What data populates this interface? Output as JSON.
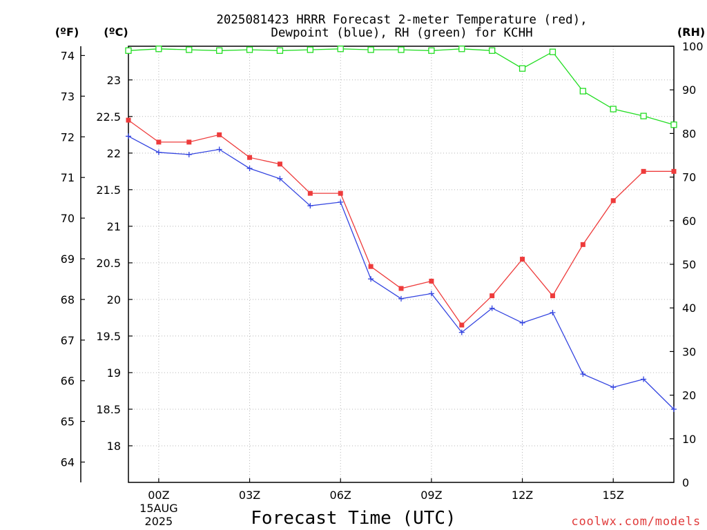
{
  "chart_data": {
    "type": "line",
    "title_lines": [
      "2025081423 HRRR Forecast 2-meter Temperature (red),",
      "Dewpoint (blue), RH (green) for KCHH"
    ],
    "xlabel": "Forecast Time (UTC)",
    "x": [
      "23Z",
      "00Z",
      "01Z",
      "02Z",
      "03Z",
      "04Z",
      "05Z",
      "06Z",
      "07Z",
      "08Z",
      "09Z",
      "10Z",
      "11Z",
      "12Z",
      "13Z",
      "14Z",
      "15Z",
      "16Z",
      "17Z"
    ],
    "x_ticks": [
      "00Z",
      "03Z",
      "06Z",
      "09Z",
      "12Z",
      "15Z"
    ],
    "x_date_label": [
      "15AUG",
      "2025"
    ],
    "left_axis_f": {
      "label": "(ºF)",
      "ticks": [
        64,
        65,
        66,
        67,
        68,
        69,
        70,
        71,
        72,
        73,
        74
      ],
      "ylim": [
        63.5,
        74.23
      ]
    },
    "left_axis_c": {
      "label": "(ºC)",
      "ticks": [
        18,
        18.5,
        19,
        19.5,
        20,
        20.5,
        21,
        21.5,
        22,
        22.5,
        23
      ],
      "ylim": [
        17.5,
        23.46
      ]
    },
    "right_axis": {
      "label": "(RH)",
      "ticks": [
        0,
        10,
        20,
        30,
        40,
        50,
        60,
        70,
        80,
        90,
        100
      ],
      "ylim": [
        0,
        100
      ]
    },
    "grid": true,
    "series": [
      {
        "name": "Temperature",
        "axis": "left",
        "color": "#ee3b3b",
        "marker": "filled-square",
        "values": [
          22.45,
          22.15,
          22.15,
          22.25,
          21.94,
          21.85,
          21.45,
          21.45,
          20.45,
          20.15,
          20.25,
          19.65,
          20.05,
          20.55,
          20.05,
          20.75,
          21.35,
          21.75,
          21.75
        ]
      },
      {
        "name": "Dewpoint",
        "axis": "left",
        "color": "#3344e0",
        "marker": "plus",
        "values": [
          22.23,
          22.01,
          21.98,
          22.05,
          21.79,
          21.65,
          21.28,
          21.33,
          20.28,
          20.01,
          20.08,
          19.55,
          19.88,
          19.68,
          19.82,
          18.98,
          18.8,
          18.91,
          18.5
        ]
      },
      {
        "name": "RH",
        "axis": "right",
        "color": "#22dd22",
        "marker": "open-square",
        "values": [
          99.0,
          99.4,
          99.2,
          99.0,
          99.2,
          99.0,
          99.2,
          99.4,
          99.2,
          99.2,
          99.0,
          99.4,
          99.0,
          94.9,
          98.7,
          89.7,
          85.6,
          84.0,
          82.0
        ]
      }
    ]
  },
  "credit": "coolwx.com/models"
}
